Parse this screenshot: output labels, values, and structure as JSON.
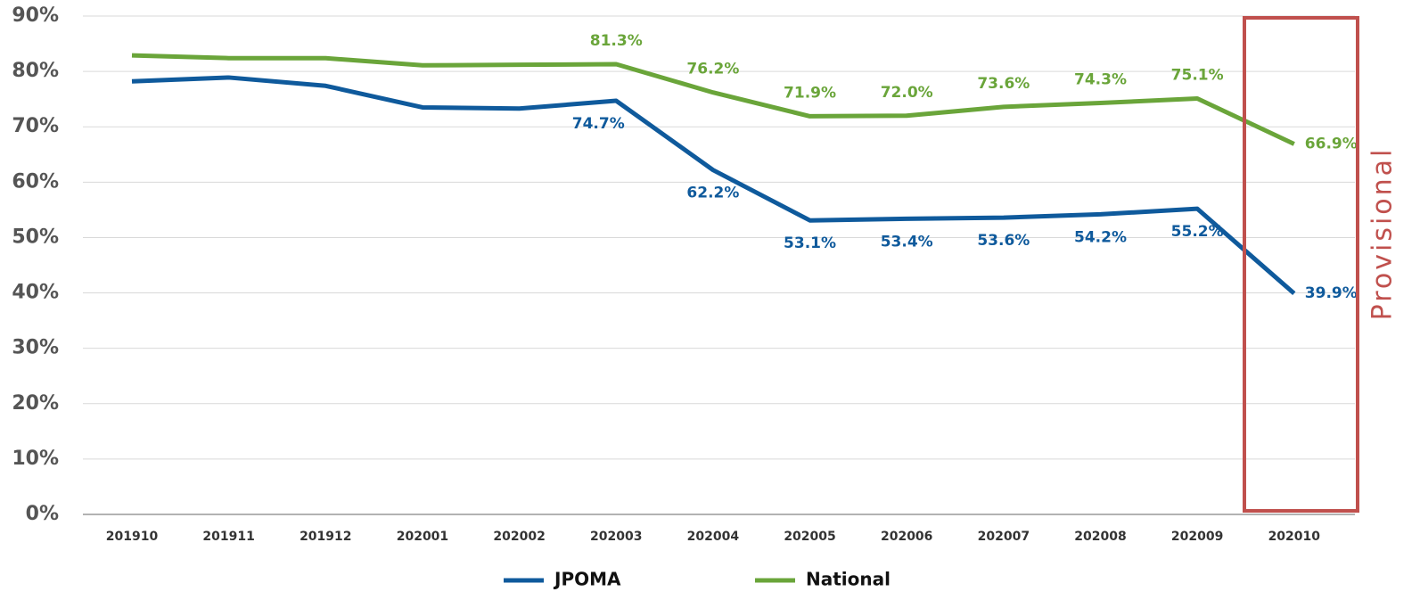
{
  "chart_data": {
    "type": "line",
    "categories": [
      "201910",
      "201911",
      "201912",
      "202001",
      "202002",
      "202003",
      "202004",
      "202005",
      "202006",
      "202007",
      "202008",
      "202009",
      "202010"
    ],
    "series": [
      {
        "name": "JPOMA",
        "color": "#0f5a9c",
        "values": [
          78.2,
          78.9,
          77.4,
          73.5,
          73.3,
          74.7,
          62.2,
          53.1,
          53.4,
          53.6,
          54.2,
          55.2,
          39.9
        ],
        "value_labels": [
          null,
          null,
          null,
          null,
          null,
          "74.7%",
          "62.2%",
          "53.1%",
          "53.4%",
          "53.6%",
          "54.2%",
          "55.2%",
          "39.9%"
        ]
      },
      {
        "name": "National",
        "color": "#6aa53a",
        "values": [
          82.9,
          82.4,
          82.4,
          81.1,
          81.2,
          81.3,
          76.2,
          71.9,
          72.0,
          73.6,
          74.3,
          75.1,
          66.9
        ],
        "value_labels": [
          null,
          null,
          null,
          null,
          null,
          "81.3%",
          "76.2%",
          "71.9%",
          "72.0%",
          "73.6%",
          "74.3%",
          "75.1%",
          "66.9%"
        ]
      }
    ],
    "ylim": [
      0,
      90
    ],
    "yticks": [
      {
        "value": 0,
        "label": "0%"
      },
      {
        "value": 10,
        "label": "10%"
      },
      {
        "value": 20,
        "label": "20%"
      },
      {
        "value": 30,
        "label": "30%"
      },
      {
        "value": 40,
        "label": "40%"
      },
      {
        "value": 50,
        "label": "50%"
      },
      {
        "value": 60,
        "label": "60%"
      },
      {
        "value": 70,
        "label": "70%"
      },
      {
        "value": 80,
        "label": "80%"
      },
      {
        "value": 90,
        "label": "90%"
      }
    ],
    "grid": true,
    "legend": "bottom",
    "annotation": "Provisional",
    "annotation_color": "#c0504d"
  }
}
